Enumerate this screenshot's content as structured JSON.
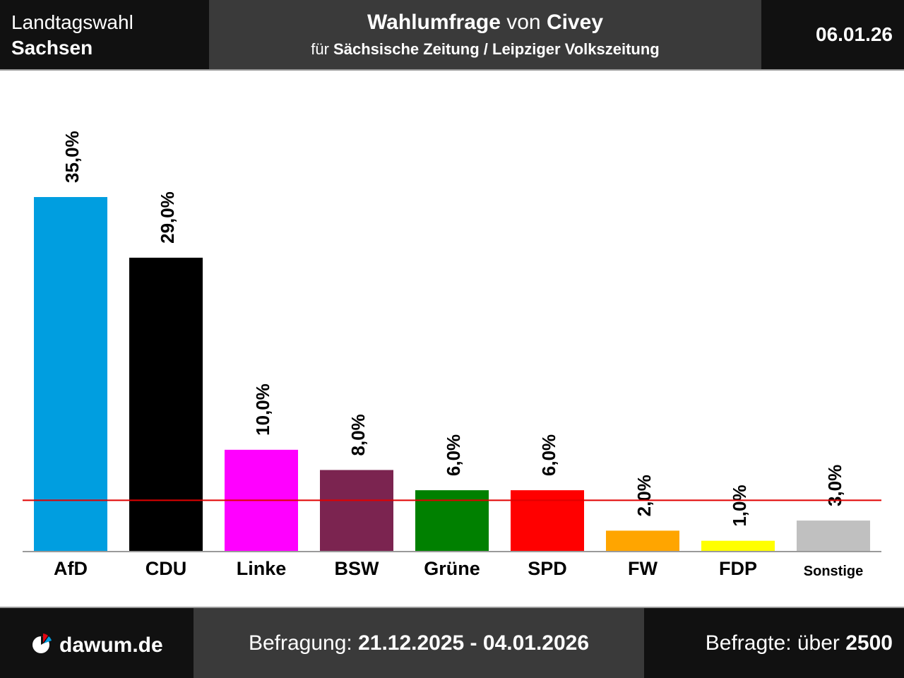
{
  "header": {
    "election_label": "Landtagswahl",
    "region": "Sachsen",
    "title_prefix": "Wahlumfrage",
    "title_connector": "von",
    "institute": "Civey",
    "client_prefix": "für",
    "client": "Sächsische Zeitung / Leipziger Volkszeitung",
    "date": "06.01.26"
  },
  "footer": {
    "site": "dawum.de",
    "period_label": "Befragung:",
    "period": "21.12.2025 - 04.01.2026",
    "respondents_label": "Befragte: über",
    "respondents": "2500"
  },
  "icons": {
    "logo": "dawum-pie-logo-icon"
  },
  "chart_data": {
    "type": "bar",
    "categories": [
      "AfD",
      "CDU",
      "Linke",
      "BSW",
      "Grüne",
      "SPD",
      "FW",
      "FDP",
      "Sonstige"
    ],
    "values": [
      35.0,
      29.0,
      10.0,
      8.0,
      6.0,
      6.0,
      2.0,
      1.0,
      3.0
    ],
    "value_labels": [
      "35,0%",
      "29,0%",
      "10,0%",
      "8,0%",
      "6,0%",
      "6,0%",
      "2,0%",
      "1,0%",
      "3,0%"
    ],
    "colors": [
      "#009ee0",
      "#000000",
      "#ff00ff",
      "#7b2450",
      "#008000",
      "#ff0000",
      "#ffa500",
      "#ffff00",
      "#c0c0c0"
    ],
    "threshold": 5,
    "threshold_color": "#e00000",
    "ylim": [
      0,
      35.0
    ],
    "grid": false,
    "legend": "none",
    "title": "",
    "xlabel": "",
    "ylabel": ""
  }
}
